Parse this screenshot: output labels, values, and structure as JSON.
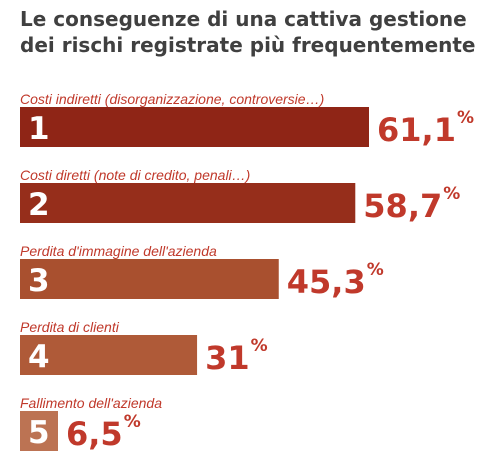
{
  "title": "Le conseguenze di una cattiva gestione dei rischi registrate più frequentemente",
  "colors": {
    "accent_text": "#C0392B",
    "category_text": "#C0392B",
    "rank_text": "#FFFFFF",
    "bars": [
      "#8F2516",
      "#962E1B",
      "#A9502F",
      "#AF5A38",
      "#BC7353"
    ]
  },
  "chart_data": {
    "type": "bar",
    "orientation": "horizontal",
    "categories": [
      "Costi indiretti (disorganizzazione, controversie…)",
      "Costi diretti (note di credito, penali…)",
      "Perdita d'immagine dell'azienda",
      "Perdita di clienti",
      "Fallimento dell'azienda"
    ],
    "ranks": [
      "1",
      "2",
      "3",
      "4",
      "5"
    ],
    "values": [
      61.1,
      58.7,
      45.3,
      31,
      6.5
    ],
    "value_labels": [
      "61,1",
      "58,7",
      "45,3",
      "31",
      "6,5"
    ],
    "unit": "%",
    "xlim": [
      0,
      61.1
    ],
    "grid": false,
    "legend": "none"
  }
}
